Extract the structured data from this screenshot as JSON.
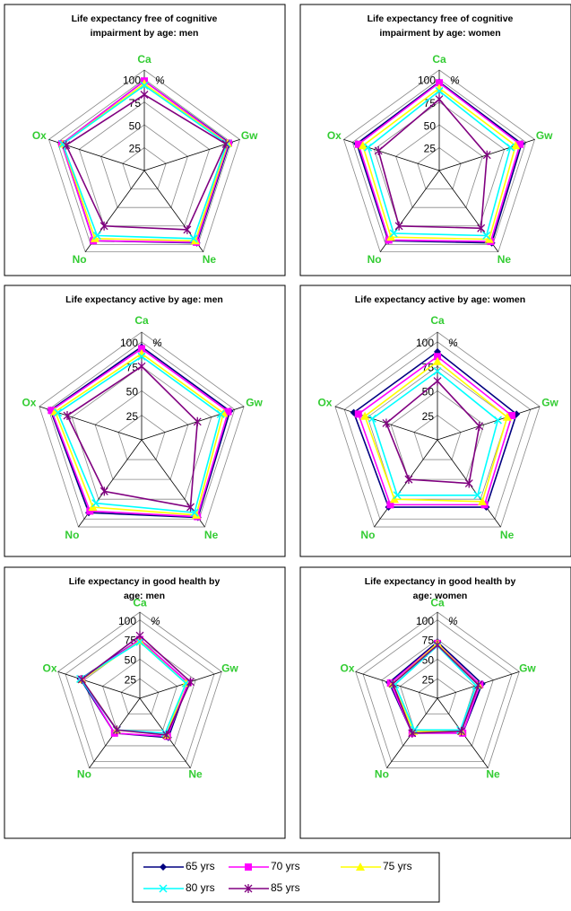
{
  "legend": [
    {
      "name": "65 yrs",
      "color": "#000080",
      "marker": "diamond"
    },
    {
      "name": "70 yrs",
      "color": "#ff00ff",
      "marker": "square"
    },
    {
      "name": "75 yrs",
      "color": "#ffff00",
      "marker": "triangle"
    },
    {
      "name": "80 yrs",
      "color": "#00ffff",
      "marker": "x"
    },
    {
      "name": "85 yrs",
      "color": "#800080",
      "marker": "star"
    }
  ],
  "chart_data": [
    {
      "type": "radar",
      "title": [
        "Life expectancy free of cognitive",
        "impairment by age: men"
      ],
      "categories": [
        "Ca",
        "Gw",
        "Ne",
        "No",
        "Ox"
      ],
      "ylim": [
        0,
        110
      ],
      "yticks": [
        25,
        50,
        75,
        100
      ],
      "unit": "%",
      "series": [
        {
          "values": [
            98,
            98,
            98,
            95,
            95
          ]
        },
        {
          "values": [
            98,
            97,
            97,
            95,
            95
          ]
        },
        {
          "values": [
            95,
            96,
            95,
            92,
            94
          ]
        },
        {
          "values": [
            93,
            95,
            92,
            88,
            94
          ]
        },
        {
          "values": [
            83,
            94,
            80,
            75,
            90
          ]
        }
      ]
    },
    {
      "type": "radar",
      "title": [
        "Life expectancy free of cognitive",
        "impairment by age: women"
      ],
      "categories": [
        "Ca",
        "Gw",
        "Ne",
        "No",
        "Ox"
      ],
      "ylim": [
        0,
        110
      ],
      "yticks": [
        25,
        50,
        75,
        100
      ],
      "unit": "%",
      "series": [
        {
          "values": [
            97,
            95,
            98,
            95,
            95
          ]
        },
        {
          "values": [
            96,
            93,
            96,
            94,
            93
          ]
        },
        {
          "values": [
            90,
            88,
            93,
            90,
            88
          ]
        },
        {
          "values": [
            87,
            82,
            88,
            85,
            82
          ]
        },
        {
          "values": [
            78,
            55,
            78,
            75,
            70
          ]
        }
      ]
    },
    {
      "type": "radar",
      "title": [
        "Life expectancy active by age: men"
      ],
      "categories": [
        "Ca",
        "Gw",
        "Ne",
        "No",
        "Ox"
      ],
      "ylim": [
        0,
        110
      ],
      "yticks": [
        25,
        50,
        75,
        100
      ],
      "unit": "%",
      "series": [
        {
          "values": [
            95,
            95,
            98,
            92,
            98
          ]
        },
        {
          "values": [
            93,
            93,
            97,
            90,
            97
          ]
        },
        {
          "values": [
            88,
            88,
            95,
            85,
            93
          ]
        },
        {
          "values": [
            85,
            85,
            92,
            80,
            90
          ]
        },
        {
          "values": [
            75,
            60,
            85,
            65,
            80
          ]
        }
      ]
    },
    {
      "type": "radar",
      "title": [
        "Life expectancy active by age: women"
      ],
      "categories": [
        "Ca",
        "Gw",
        "Ne",
        "No",
        "Ox"
      ],
      "ylim": [
        0,
        110
      ],
      "yticks": [
        25,
        50,
        75,
        100
      ],
      "unit": "%",
      "series": [
        {
          "values": [
            90,
            85,
            85,
            85,
            90
          ]
        },
        {
          "values": [
            85,
            80,
            82,
            82,
            85
          ]
        },
        {
          "values": [
            80,
            75,
            78,
            75,
            78
          ]
        },
        {
          "values": [
            70,
            65,
            70,
            70,
            70
          ]
        },
        {
          "values": [
            60,
            45,
            55,
            50,
            55
          ]
        }
      ]
    },
    {
      "type": "radar",
      "title": [
        "Life expectancy in good health by",
        "age: men"
      ],
      "categories": [
        "Ca",
        "Gw",
        "Ne",
        "No",
        "Ox"
      ],
      "ylim": [
        0,
        110
      ],
      "yticks": [
        25,
        50,
        75,
        100
      ],
      "unit": "%",
      "series": [
        {
          "values": [
            75,
            65,
            62,
            55,
            80
          ]
        },
        {
          "values": [
            75,
            65,
            60,
            55,
            78
          ]
        },
        {
          "values": [
            73,
            62,
            58,
            50,
            78
          ]
        },
        {
          "values": [
            72,
            62,
            55,
            50,
            80
          ]
        },
        {
          "values": [
            80,
            68,
            58,
            50,
            78
          ]
        }
      ]
    },
    {
      "type": "radar",
      "title": [
        "Life expectancy in good health by",
        "age: women"
      ],
      "categories": [
        "Ca",
        "Gw",
        "Ne",
        "No",
        "Ox"
      ],
      "ylim": [
        0,
        110
      ],
      "yticks": [
        25,
        50,
        75,
        100
      ],
      "unit": "%",
      "series": [
        {
          "values": [
            72,
            60,
            55,
            55,
            65
          ]
        },
        {
          "values": [
            70,
            57,
            55,
            55,
            63
          ]
        },
        {
          "values": [
            70,
            55,
            52,
            52,
            60
          ]
        },
        {
          "values": [
            67,
            52,
            50,
            50,
            57
          ]
        },
        {
          "values": [
            68,
            55,
            52,
            55,
            60
          ]
        }
      ]
    }
  ]
}
